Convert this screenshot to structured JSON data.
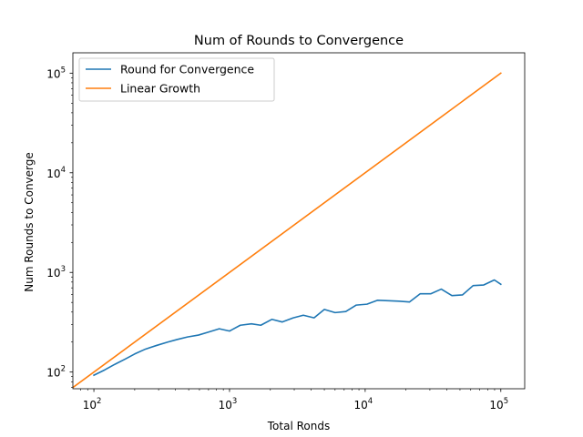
{
  "chart_data": {
    "type": "line",
    "title": "Num of Rounds to Convergence",
    "xlabel": "Total Ronds",
    "ylabel": "Num Rounds to Converge",
    "x_scale": "log",
    "y_scale": "log",
    "xlim": [
      70,
      150000
    ],
    "ylim": [
      68,
      160000
    ],
    "x_ticks": [
      {
        "value": 100,
        "base": "10",
        "exp": "2"
      },
      {
        "value": 1000,
        "base": "10",
        "exp": "3"
      },
      {
        "value": 10000,
        "base": "10",
        "exp": "4"
      },
      {
        "value": 100000,
        "base": "10",
        "exp": "5"
      }
    ],
    "y_ticks": [
      {
        "value": 100,
        "base": "10",
        "exp": "2"
      },
      {
        "value": 1000,
        "base": "10",
        "exp": "3"
      },
      {
        "value": 10000,
        "base": "10",
        "exp": "4"
      },
      {
        "value": 100000,
        "base": "10",
        "exp": "5"
      }
    ],
    "grid": false,
    "legend_position": "top-left",
    "series": [
      {
        "name": "Round for Convergence",
        "color": "#1f77b4",
        "x": [
          100,
          120,
          140,
          170,
          200,
          240,
          290,
          350,
          410,
          490,
          590,
          700,
          840,
          1000,
          1200,
          1450,
          1700,
          2050,
          2450,
          2950,
          3500,
          4200,
          5000,
          6000,
          7200,
          8600,
          10300,
          12300,
          14800,
          17700,
          21200,
          25400,
          30400,
          36400,
          43600,
          52200,
          62500,
          74800,
          89600,
          100000
        ],
        "y": [
          93,
          105,
          118,
          135,
          152,
          170,
          185,
          200,
          212,
          225,
          235,
          252,
          272,
          258,
          295,
          305,
          295,
          338,
          318,
          350,
          372,
          350,
          425,
          395,
          405,
          470,
          480,
          525,
          520,
          515,
          505,
          610,
          610,
          680,
          585,
          595,
          738,
          748,
          840,
          760
        ]
      },
      {
        "name": "Linear Growth",
        "color": "#ff7f0e",
        "x": [
          70,
          100000
        ],
        "y": [
          70,
          100000
        ]
      }
    ]
  }
}
